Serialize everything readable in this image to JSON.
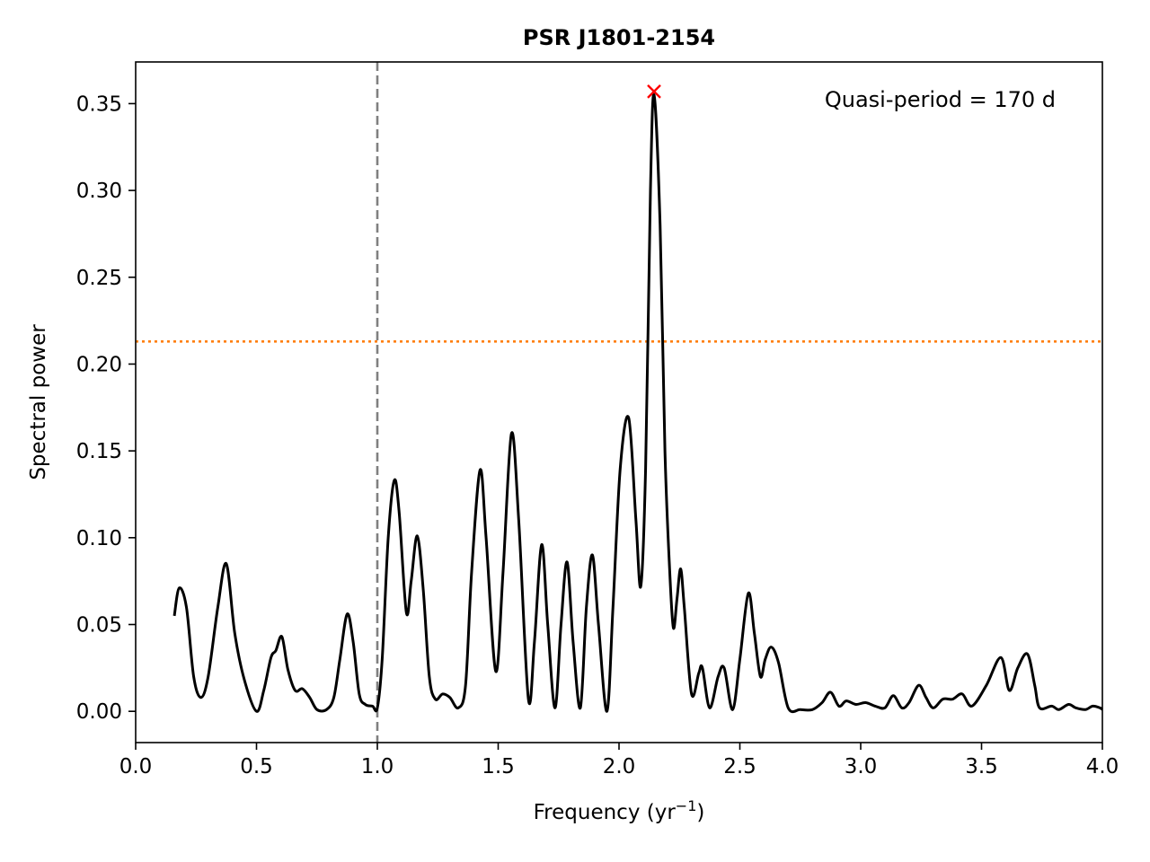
{
  "chart_data": {
    "type": "line",
    "title": "PSR J1801-2154",
    "xlabel": "Frequency (yr⁻¹)",
    "ylabel": "Spectral power",
    "xlim": [
      0.0,
      4.0
    ],
    "ylim": [
      -0.018,
      0.374
    ],
    "x_ticks": [
      0.0,
      0.5,
      1.0,
      1.5,
      2.0,
      2.5,
      3.0,
      3.5,
      4.0
    ],
    "x_tick_labels": [
      "0.0",
      "0.5",
      "1.0",
      "1.5",
      "2.0",
      "2.5",
      "3.0",
      "3.5",
      "4.0"
    ],
    "y_ticks": [
      0.0,
      0.05,
      0.1,
      0.15,
      0.2,
      0.25,
      0.3,
      0.35
    ],
    "y_tick_labels": [
      "0.00",
      "0.05",
      "0.10",
      "0.15",
      "0.20",
      "0.25",
      "0.30",
      "0.35"
    ],
    "grid": false,
    "annotation": "Quasi-period = 170 d",
    "series": [
      {
        "color": "#000000",
        "points": [
          [
            0.16,
            0.055
          ],
          [
            0.18,
            0.071
          ],
          [
            0.21,
            0.06
          ],
          [
            0.24,
            0.02
          ],
          [
            0.27,
            0.008
          ],
          [
            0.3,
            0.02
          ],
          [
            0.34,
            0.06
          ],
          [
            0.375,
            0.085
          ],
          [
            0.41,
            0.045
          ],
          [
            0.45,
            0.018
          ],
          [
            0.5,
            0.0
          ],
          [
            0.53,
            0.012
          ],
          [
            0.56,
            0.031
          ],
          [
            0.58,
            0.035
          ],
          [
            0.605,
            0.043
          ],
          [
            0.63,
            0.024
          ],
          [
            0.66,
            0.012
          ],
          [
            0.69,
            0.013
          ],
          [
            0.72,
            0.008
          ],
          [
            0.75,
            0.001
          ],
          [
            0.79,
            0.001
          ],
          [
            0.82,
            0.008
          ],
          [
            0.845,
            0.03
          ],
          [
            0.875,
            0.056
          ],
          [
            0.9,
            0.04
          ],
          [
            0.925,
            0.01
          ],
          [
            0.95,
            0.004
          ],
          [
            0.98,
            0.003
          ],
          [
            1.0,
            0.002
          ],
          [
            1.02,
            0.03
          ],
          [
            1.045,
            0.1
          ],
          [
            1.07,
            0.133
          ],
          [
            1.09,
            0.115
          ],
          [
            1.12,
            0.057
          ],
          [
            1.14,
            0.075
          ],
          [
            1.165,
            0.101
          ],
          [
            1.19,
            0.07
          ],
          [
            1.215,
            0.02
          ],
          [
            1.24,
            0.007
          ],
          [
            1.27,
            0.01
          ],
          [
            1.3,
            0.008
          ],
          [
            1.335,
            0.002
          ],
          [
            1.365,
            0.015
          ],
          [
            1.39,
            0.08
          ],
          [
            1.425,
            0.139
          ],
          [
            1.45,
            0.1
          ],
          [
            1.49,
            0.023
          ],
          [
            1.52,
            0.08
          ],
          [
            1.555,
            0.16
          ],
          [
            1.585,
            0.11
          ],
          [
            1.625,
            0.007
          ],
          [
            1.65,
            0.04
          ],
          [
            1.68,
            0.096
          ],
          [
            1.705,
            0.05
          ],
          [
            1.735,
            0.002
          ],
          [
            1.76,
            0.05
          ],
          [
            1.785,
            0.086
          ],
          [
            1.81,
            0.04
          ],
          [
            1.84,
            0.002
          ],
          [
            1.865,
            0.06
          ],
          [
            1.89,
            0.09
          ],
          [
            1.915,
            0.05
          ],
          [
            1.95,
            0.0
          ],
          [
            1.975,
            0.06
          ],
          [
            2.005,
            0.14
          ],
          [
            2.04,
            0.169
          ],
          [
            2.07,
            0.11
          ],
          [
            2.09,
            0.072
          ],
          [
            2.11,
            0.14
          ],
          [
            2.13,
            0.3
          ],
          [
            2.145,
            0.355
          ],
          [
            2.17,
            0.28
          ],
          [
            2.19,
            0.15
          ],
          [
            2.21,
            0.08
          ],
          [
            2.225,
            0.048
          ],
          [
            2.24,
            0.065
          ],
          [
            2.255,
            0.082
          ],
          [
            2.27,
            0.06
          ],
          [
            2.3,
            0.01
          ],
          [
            2.33,
            0.022
          ],
          [
            2.345,
            0.025
          ],
          [
            2.375,
            0.002
          ],
          [
            2.41,
            0.02
          ],
          [
            2.435,
            0.025
          ],
          [
            2.47,
            0.001
          ],
          [
            2.5,
            0.03
          ],
          [
            2.535,
            0.068
          ],
          [
            2.56,
            0.045
          ],
          [
            2.585,
            0.02
          ],
          [
            2.605,
            0.03
          ],
          [
            2.63,
            0.037
          ],
          [
            2.66,
            0.028
          ],
          [
            2.7,
            0.002
          ],
          [
            2.75,
            0.001
          ],
          [
            2.8,
            0.001
          ],
          [
            2.84,
            0.005
          ],
          [
            2.875,
            0.011
          ],
          [
            2.91,
            0.003
          ],
          [
            2.94,
            0.006
          ],
          [
            2.98,
            0.004
          ],
          [
            3.02,
            0.005
          ],
          [
            3.06,
            0.003
          ],
          [
            3.1,
            0.002
          ],
          [
            3.135,
            0.009
          ],
          [
            3.17,
            0.002
          ],
          [
            3.2,
            0.005
          ],
          [
            3.24,
            0.015
          ],
          [
            3.27,
            0.008
          ],
          [
            3.3,
            0.002
          ],
          [
            3.34,
            0.007
          ],
          [
            3.38,
            0.007
          ],
          [
            3.42,
            0.01
          ],
          [
            3.46,
            0.003
          ],
          [
            3.52,
            0.015
          ],
          [
            3.58,
            0.031
          ],
          [
            3.615,
            0.012
          ],
          [
            3.65,
            0.025
          ],
          [
            3.69,
            0.033
          ],
          [
            3.72,
            0.015
          ],
          [
            3.74,
            0.002
          ],
          [
            3.79,
            0.003
          ],
          [
            3.82,
            0.001
          ],
          [
            3.86,
            0.004
          ],
          [
            3.89,
            0.002
          ],
          [
            3.93,
            0.001
          ],
          [
            3.96,
            0.003
          ],
          [
            3.99,
            0.002
          ],
          [
            4.0,
            0.001
          ]
        ]
      }
    ],
    "vertical_line": {
      "x": 1.0,
      "style": "dashed",
      "color": "#808080"
    },
    "horizontal_line": {
      "y": 0.213,
      "style": "dotted",
      "color": "#ff7f0e"
    },
    "peak_marker": {
      "x": 2.145,
      "y": 0.357,
      "symbol": "x",
      "color": "#ff0000"
    }
  }
}
